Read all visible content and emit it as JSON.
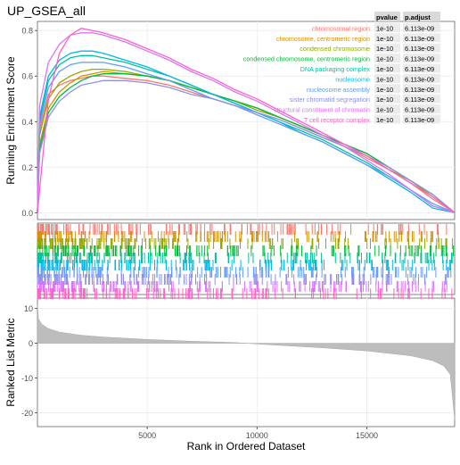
{
  "chart_data": {
    "type": "line",
    "title": "UP_GSEA_all",
    "xlabel": "Rank in Ordered Dataset",
    "top_ylabel": "Running Enrichment Score",
    "bottom_ylabel": "Ranked List Metric",
    "xlim": [
      1,
      19000
    ],
    "x_ticks": [
      5000,
      10000,
      15000
    ],
    "top_ylim": [
      -0.03,
      0.84
    ],
    "top_y_ticks": [
      0.0,
      0.2,
      0.4,
      0.6,
      0.8
    ],
    "bottom_ylim": [
      -24,
      13
    ],
    "bottom_y_ticks": [
      10,
      0,
      -10,
      -20
    ],
    "grid": true,
    "legend_position": "top-right",
    "table_headers": [
      "pvalue",
      "p.adjust"
    ],
    "series": [
      {
        "name": "chromosomal region",
        "color": "#f8766d",
        "pvalue": "1e-10",
        "padjust": "6.113e-09",
        "x": [
          1,
          100,
          500,
          1000,
          1500,
          2000,
          2500,
          3000,
          4000,
          5000,
          6000,
          7000,
          8000,
          9000,
          10000,
          11000,
          12000,
          13000,
          14000,
          15000,
          16000,
          17000,
          18000,
          19000
        ],
        "y": [
          0.0,
          0.36,
          0.52,
          0.56,
          0.58,
          0.59,
          0.6,
          0.6,
          0.59,
          0.58,
          0.56,
          0.53,
          0.5,
          0.47,
          0.44,
          0.41,
          0.37,
          0.33,
          0.29,
          0.24,
          0.19,
          0.13,
          0.06,
          0.0
        ]
      },
      {
        "name": "chromosome, centromeric region",
        "color": "#d39200",
        "pvalue": "1e-10",
        "padjust": "6.113e-09",
        "x": [
          1,
          100,
          500,
          1000,
          1500,
          2000,
          2500,
          3000,
          4000,
          5000,
          6000,
          7000,
          8000,
          9000,
          10000,
          11000,
          12000,
          13000,
          14000,
          15000,
          16000,
          17000,
          18000,
          19000
        ],
        "y": [
          0.0,
          0.3,
          0.46,
          0.53,
          0.57,
          0.6,
          0.61,
          0.62,
          0.61,
          0.6,
          0.58,
          0.55,
          0.52,
          0.49,
          0.46,
          0.42,
          0.38,
          0.34,
          0.3,
          0.26,
          0.2,
          0.14,
          0.08,
          0.0
        ]
      },
      {
        "name": "condensed chromosome",
        "color": "#93aa00",
        "pvalue": "1e-10",
        "padjust": "6.113e-09",
        "x": [
          1,
          100,
          500,
          1000,
          1500,
          2000,
          2500,
          3000,
          4000,
          5000,
          6000,
          7000,
          8000,
          9000,
          10000,
          11000,
          12000,
          13000,
          14000,
          15000,
          16000,
          17000,
          18000,
          19000
        ],
        "y": [
          0.0,
          0.34,
          0.5,
          0.57,
          0.6,
          0.62,
          0.63,
          0.63,
          0.62,
          0.6,
          0.58,
          0.55,
          0.52,
          0.49,
          0.45,
          0.42,
          0.38,
          0.34,
          0.29,
          0.25,
          0.19,
          0.14,
          0.07,
          0.0
        ]
      },
      {
        "name": "condensed chromosome, centromeric region",
        "color": "#00ba38",
        "pvalue": "1e-10",
        "padjust": "6.113e-09",
        "x": [
          1,
          100,
          500,
          1000,
          1500,
          2000,
          2500,
          3000,
          4000,
          5000,
          6000,
          7000,
          8000,
          9000,
          10000,
          11000,
          12000,
          13000,
          14000,
          15000,
          16000,
          17000,
          18000,
          19000
        ],
        "y": [
          0.0,
          0.28,
          0.44,
          0.51,
          0.55,
          0.58,
          0.6,
          0.61,
          0.61,
          0.6,
          0.58,
          0.55,
          0.52,
          0.49,
          0.46,
          0.42,
          0.38,
          0.34,
          0.3,
          0.26,
          0.2,
          0.14,
          0.08,
          0.0
        ]
      },
      {
        "name": "DNA packaging complex",
        "color": "#00c19f",
        "pvalue": "1e-10",
        "padjust": "6.113e-09",
        "x": [
          1,
          100,
          500,
          1000,
          1500,
          2000,
          2500,
          3000,
          4000,
          5000,
          6000,
          7000,
          8000,
          9000,
          10000,
          11000,
          12000,
          13000,
          14000,
          15000,
          16000,
          17000,
          18000,
          19000
        ],
        "y": [
          0.0,
          0.4,
          0.58,
          0.65,
          0.68,
          0.69,
          0.69,
          0.68,
          0.66,
          0.63,
          0.6,
          0.56,
          0.52,
          0.48,
          0.44,
          0.4,
          0.36,
          0.32,
          0.27,
          0.22,
          0.16,
          0.1,
          0.03,
          0.0
        ]
      },
      {
        "name": "nucleosome",
        "color": "#00b9e3",
        "pvalue": "1e-10",
        "padjust": "6.113e-09",
        "x": [
          1,
          100,
          500,
          1000,
          1500,
          2000,
          2500,
          3000,
          4000,
          5000,
          6000,
          7000,
          8000,
          9000,
          10000,
          11000,
          12000,
          13000,
          14000,
          15000,
          16000,
          17000,
          18000,
          19000
        ],
        "y": [
          0.0,
          0.42,
          0.6,
          0.67,
          0.7,
          0.71,
          0.71,
          0.7,
          0.67,
          0.64,
          0.6,
          0.56,
          0.52,
          0.48,
          0.44,
          0.4,
          0.35,
          0.31,
          0.26,
          0.21,
          0.15,
          0.09,
          0.02,
          0.0
        ]
      },
      {
        "name": "nucleosome assembly",
        "color": "#619cff",
        "pvalue": "1e-10",
        "padjust": "6.113e-09",
        "x": [
          1,
          100,
          500,
          1000,
          1500,
          2000,
          2500,
          3000,
          4000,
          5000,
          6000,
          7000,
          8000,
          9000,
          10000,
          11000,
          12000,
          13000,
          14000,
          15000,
          16000,
          17000,
          18000,
          19000
        ],
        "y": [
          0.0,
          0.38,
          0.55,
          0.62,
          0.65,
          0.66,
          0.66,
          0.66,
          0.64,
          0.61,
          0.58,
          0.54,
          0.5,
          0.47,
          0.43,
          0.39,
          0.35,
          0.31,
          0.26,
          0.21,
          0.16,
          0.1,
          0.04,
          0.0
        ]
      },
      {
        "name": "sister chromatid segregation",
        "color": "#8f8fe8",
        "pvalue": "1e-10",
        "padjust": "6.113e-09",
        "x": [
          1,
          100,
          500,
          1000,
          1500,
          2000,
          2500,
          3000,
          4000,
          5000,
          6000,
          7000,
          8000,
          9000,
          10000,
          11000,
          12000,
          13000,
          14000,
          15000,
          16000,
          17000,
          18000,
          19000
        ],
        "y": [
          0.0,
          0.26,
          0.42,
          0.49,
          0.53,
          0.56,
          0.57,
          0.58,
          0.58,
          0.57,
          0.55,
          0.52,
          0.5,
          0.47,
          0.44,
          0.41,
          0.37,
          0.33,
          0.29,
          0.25,
          0.2,
          0.14,
          0.08,
          0.0
        ]
      },
      {
        "name": "structural constituent of chromatin",
        "color": "#db72fb",
        "pvalue": "1e-10",
        "padjust": "6.113e-09",
        "x": [
          1,
          100,
          500,
          1000,
          1500,
          2000,
          2500,
          3000,
          4000,
          5000,
          6000,
          7000,
          8000,
          9000,
          10000,
          11000,
          12000,
          13000,
          14000,
          15000,
          16000,
          17000,
          18000,
          19000
        ],
        "y": [
          0.0,
          0.47,
          0.66,
          0.74,
          0.78,
          0.79,
          0.79,
          0.78,
          0.75,
          0.71,
          0.67,
          0.62,
          0.58,
          0.53,
          0.49,
          0.44,
          0.39,
          0.34,
          0.29,
          0.23,
          0.17,
          0.1,
          0.03,
          0.0
        ]
      },
      {
        "name": "T cell receptor complex",
        "color": "#ff61c3",
        "pvalue": "1e-10",
        "padjust": "6.113e-09",
        "x": [
          1,
          100,
          500,
          1000,
          1500,
          2000,
          2500,
          3000,
          4000,
          5000,
          6000,
          7000,
          8000,
          9000,
          10000,
          11000,
          12000,
          13000,
          14000,
          15000,
          16000,
          17000,
          18000,
          19000
        ],
        "y": [
          0.0,
          0.1,
          0.5,
          0.7,
          0.78,
          0.81,
          0.8,
          0.79,
          0.76,
          0.72,
          0.68,
          0.63,
          0.59,
          0.54,
          0.5,
          0.45,
          0.4,
          0.35,
          0.3,
          0.25,
          0.19,
          0.13,
          0.07,
          0.0
        ]
      }
    ],
    "ranked_metric": {
      "x": [
        1,
        50,
        200,
        500,
        1000,
        2000,
        3000,
        5000,
        7000,
        9000,
        9500,
        10000,
        11000,
        13000,
        15000,
        17000,
        18000,
        18500,
        18800,
        19000
      ],
      "y": [
        11,
        7,
        5.5,
        4.2,
        3.2,
        2.3,
        1.8,
        1.1,
        0.6,
        0.2,
        0.0,
        -0.2,
        -0.6,
        -1.3,
        -2.2,
        -3.6,
        -5.0,
        -6.5,
        -9.0,
        -22
      ]
    }
  }
}
